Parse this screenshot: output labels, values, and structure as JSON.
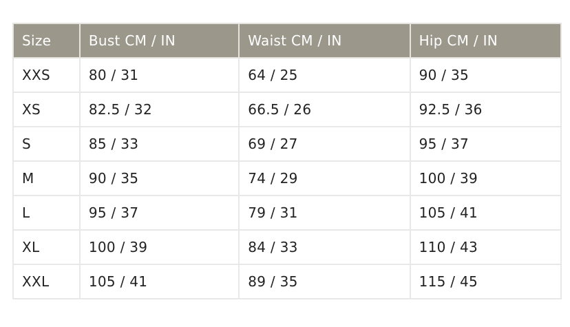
{
  "table": {
    "headers": [
      "Size",
      "Bust CM / IN",
      "Waist CM / IN",
      "Hip CM / IN"
    ],
    "rows": [
      [
        "XXS",
        "80 / 31",
        "64 / 25",
        "90 / 35"
      ],
      [
        "XS",
        "82.5 / 32",
        "66.5 / 26",
        "92.5 / 36"
      ],
      [
        "S",
        "85 / 33",
        "69 / 27",
        "95 / 37"
      ],
      [
        "M",
        "90 / 35",
        "74 / 29",
        "100 / 39"
      ],
      [
        "L",
        "95 / 37",
        "79 / 31",
        "105 / 41"
      ],
      [
        "XL",
        "100 / 39",
        "84 / 33",
        "110 / 43"
      ],
      [
        "XXL",
        "105 / 41",
        "89 / 35",
        "115 / 45"
      ]
    ]
  },
  "colors": {
    "header_bg": "#9b988b",
    "header_text": "#ffffff",
    "border": "#e8e8e8"
  }
}
